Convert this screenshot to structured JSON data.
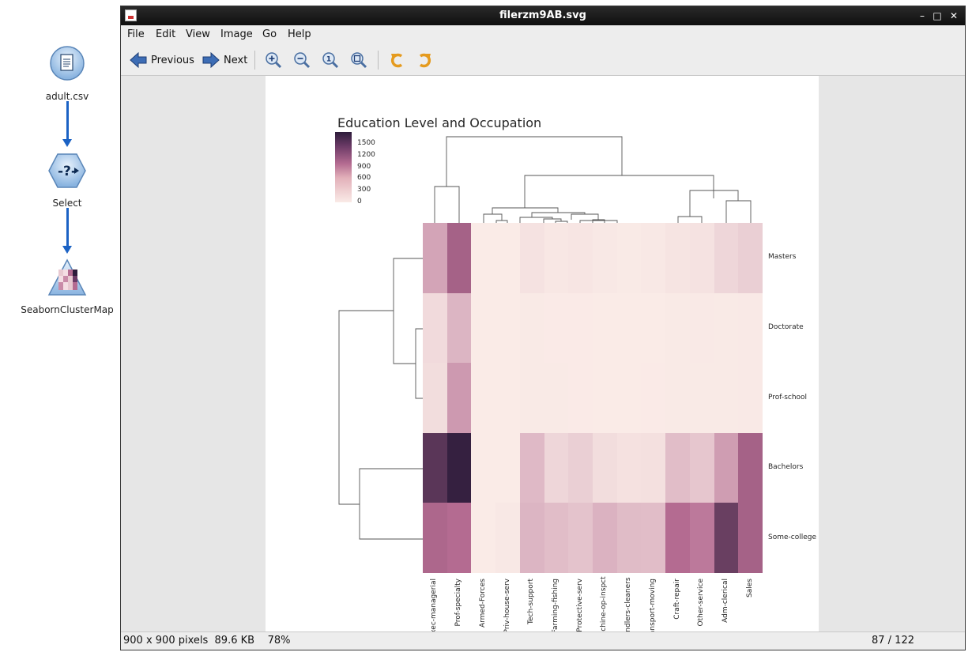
{
  "workflow": {
    "nodes": [
      {
        "label": "adult.csv",
        "icon": "csv-file-icon"
      },
      {
        "label": "Select",
        "icon": "select-node-icon"
      },
      {
        "label": "SeabornClusterMap",
        "icon": "clustermap-node-icon"
      }
    ],
    "connector_color": "#1b62c4"
  },
  "window": {
    "title": "filerzm9AB.svg",
    "controls": [
      "minimize-icon",
      "maximize-icon",
      "close-icon"
    ]
  },
  "menu": [
    "File",
    "Edit",
    "View",
    "Image",
    "Go",
    "Help"
  ],
  "toolbar": {
    "previous_label": "Previous",
    "next_label": "Next",
    "icons": [
      "zoom-in-icon",
      "zoom-out-icon",
      "zoom-100-icon",
      "zoom-fit-icon",
      "rotate-left-icon",
      "rotate-right-icon"
    ]
  },
  "status": {
    "info": "900 x 900 pixels  89.6 KB    78%",
    "page": "87 / 122"
  },
  "chart_data": {
    "type": "heatmap",
    "title": "Education Level and Occupation",
    "rows": [
      "Masters",
      "Doctorate",
      "Prof-school",
      "Bachelors",
      "Some-college"
    ],
    "columns": [
      "Exec-managerial",
      "Prof-specialty",
      "Armed-Forces",
      "Priv-house-serv",
      "Tech-support",
      "Farming-fishing",
      "Protective-serv",
      "Machine-op-inspct",
      "Handlers-cleaners",
      "Transport-moving",
      "Craft-repair",
      "Other-service",
      "Adm-clerical",
      "Sales"
    ],
    "values": [
      [
        500,
        1000,
        0,
        0,
        60,
        30,
        40,
        20,
        10,
        20,
        50,
        60,
        150,
        200
      ],
      [
        120,
        380,
        0,
        0,
        10,
        5,
        5,
        2,
        2,
        3,
        10,
        15,
        10,
        15
      ],
      [
        100,
        580,
        0,
        0,
        10,
        10,
        5,
        3,
        2,
        5,
        10,
        10,
        10,
        15
      ],
      [
        1500,
        1750,
        0,
        0,
        350,
        150,
        200,
        100,
        70,
        80,
        320,
        260,
        550,
        1000
      ],
      [
        950,
        900,
        0,
        20,
        380,
        320,
        280,
        400,
        330,
        320,
        900,
        800,
        1400,
        1000
      ]
    ],
    "colorbar": {
      "ticks": [
        0,
        300,
        600,
        900,
        1200,
        1500
      ],
      "min": 0,
      "max": 1800
    },
    "colormap": {
      "low": "#faebe7",
      "mid": "#b46b91",
      "high": "#2d1c3b"
    }
  }
}
